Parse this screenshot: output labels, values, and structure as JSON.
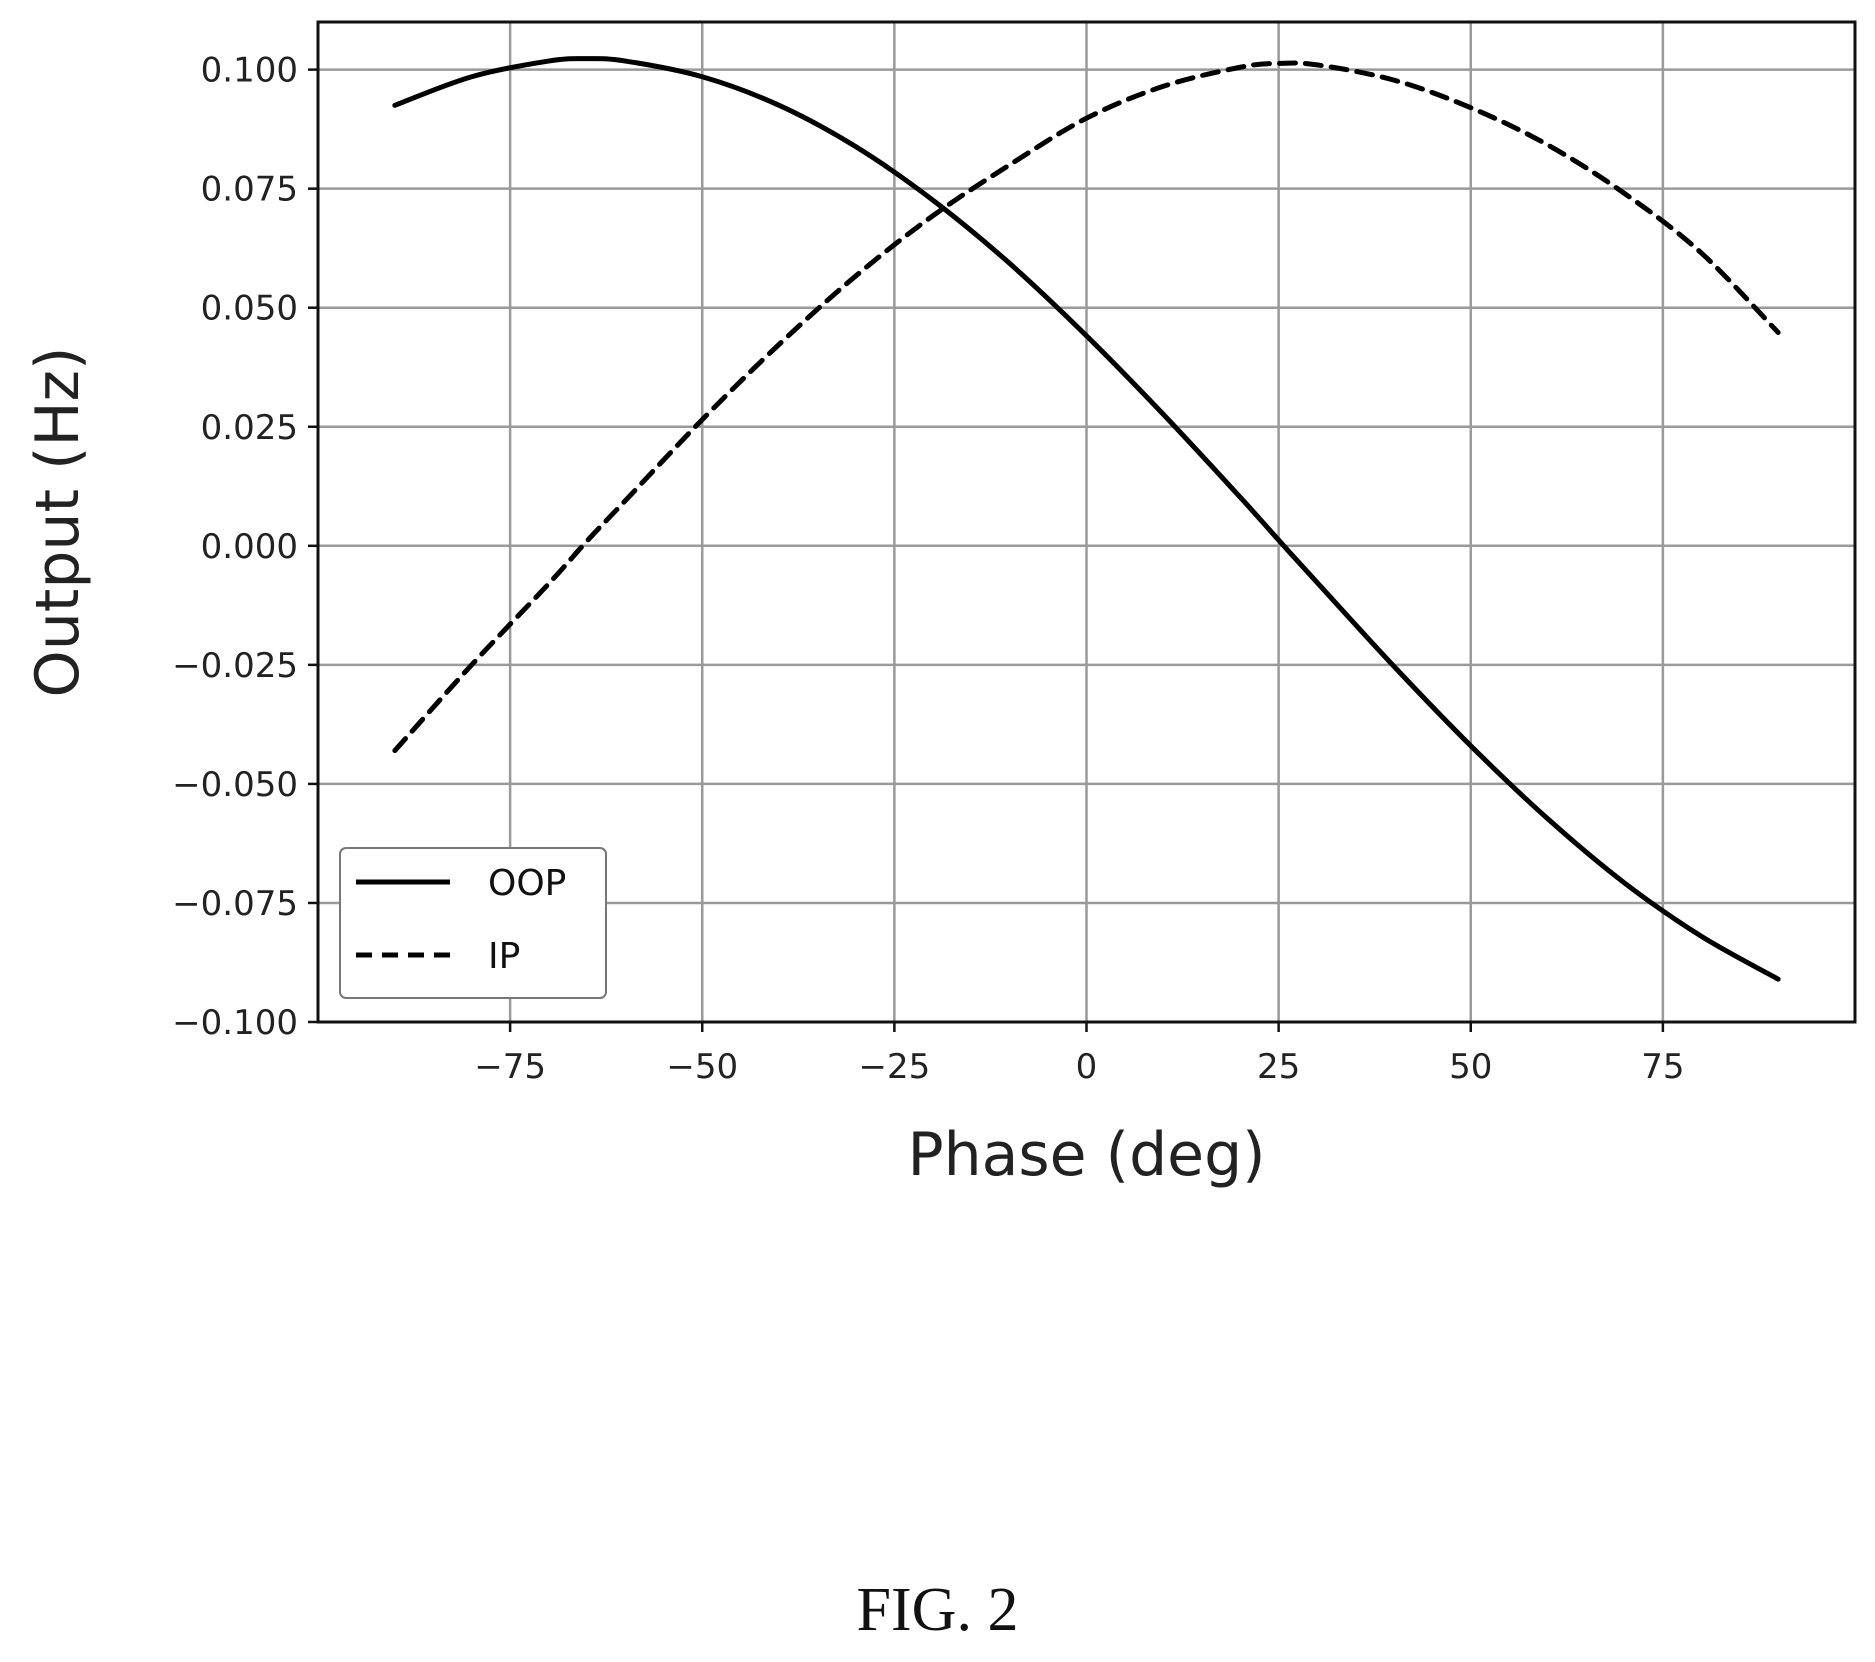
{
  "figure": {
    "caption": "FIG. 2"
  },
  "chart_data": {
    "type": "line",
    "title": "",
    "xlabel": "Phase (deg)",
    "ylabel": "Output (Hz)",
    "xlim": [
      -100,
      100
    ],
    "ylim": [
      -0.1,
      0.11
    ],
    "xticks": [
      -75,
      -50,
      -25,
      0,
      25,
      50,
      75
    ],
    "xtick_labels": [
      "−75",
      "−50",
      "−25",
      "0",
      "25",
      "50",
      "75"
    ],
    "yticks": [
      0.1,
      0.075,
      0.05,
      0.025,
      0.0,
      -0.025,
      -0.05,
      -0.075,
      -0.1
    ],
    "ytick_labels": [
      "0.100",
      "0.075",
      "0.050",
      "0.025",
      "0.000",
      "−0.025",
      "−0.050",
      "−0.075",
      "−0.100"
    ],
    "grid": true,
    "legend_position": "lower-left",
    "x": [
      -90,
      -80,
      -70,
      -65,
      -60,
      -50,
      -40,
      -30,
      -20,
      -10,
      0,
      10,
      20,
      25,
      30,
      40,
      50,
      60,
      70,
      80,
      90
    ],
    "series": [
      {
        "name": "OOP",
        "style": "solid",
        "color": "#000000",
        "values": [
          0.0925,
          0.0985,
          0.1018,
          0.1023,
          0.1018,
          0.0985,
          0.0925,
          0.0838,
          0.0726,
          0.0593,
          0.0441,
          0.0276,
          0.0102,
          0.0012,
          -0.0077,
          -0.0253,
          -0.042,
          -0.0573,
          -0.0708,
          -0.082,
          -0.091
        ]
      },
      {
        "name": "IP",
        "style": "dashed",
        "color": "#000000",
        "values": [
          -0.043,
          -0.025,
          -0.008,
          0.001,
          0.0095,
          0.0265,
          0.0423,
          0.0567,
          0.0693,
          0.08,
          0.0898,
          0.0965,
          0.1005,
          0.1013,
          0.101,
          0.0978,
          0.092,
          0.0842,
          0.074,
          0.0615,
          0.0448
        ]
      }
    ]
  }
}
